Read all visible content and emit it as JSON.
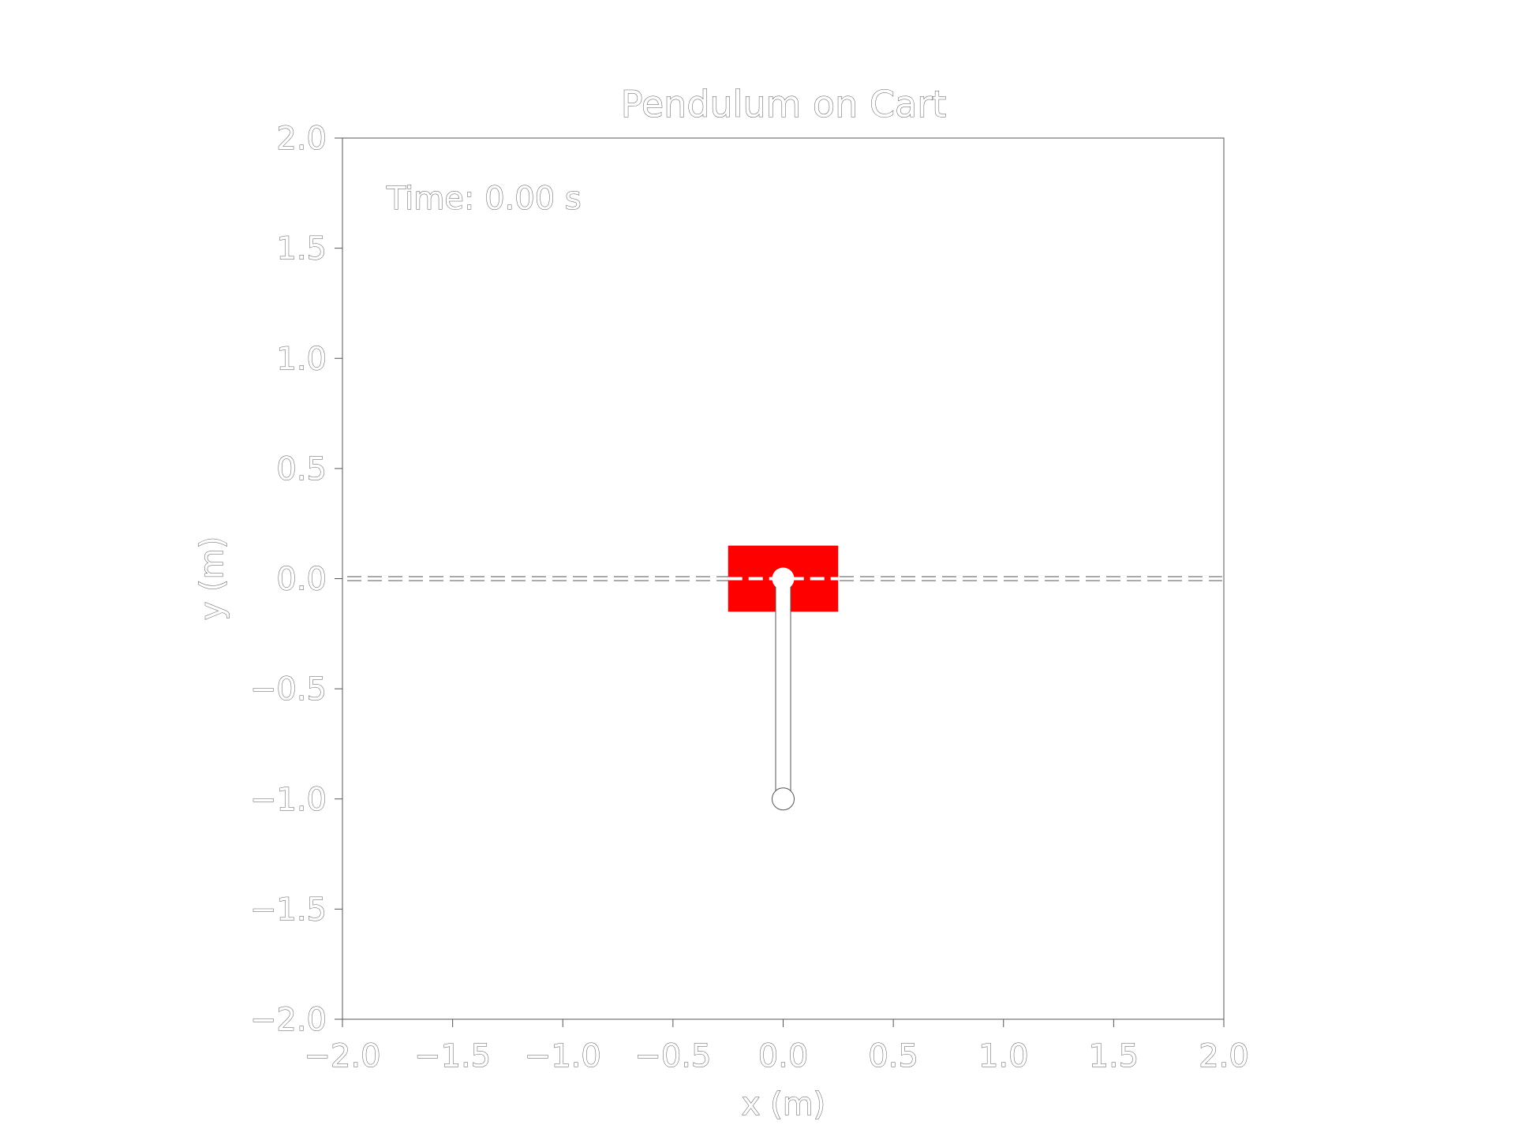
{
  "chart_data": {
    "type": "scatter",
    "title": "Pendulum on Cart",
    "xlabel": "x (m)",
    "ylabel": "y (m)",
    "xlim": [
      -2.0,
      2.0
    ],
    "ylim": [
      -2.0,
      2.0
    ],
    "xticks": [
      -2.0,
      -1.5,
      -1.0,
      -0.5,
      0.0,
      0.5,
      1.0,
      1.5,
      2.0
    ],
    "yticks": [
      -2.0,
      -1.5,
      -1.0,
      -0.5,
      0.0,
      0.5,
      1.0,
      1.5,
      2.0
    ],
    "xtick_labels": [
      "−2.0",
      "−1.5",
      "−1.0",
      "−0.5",
      "0.0",
      "0.5",
      "1.0",
      "1.5",
      "2.0"
    ],
    "ytick_labels": [
      "−2.0",
      "−1.5",
      "−1.0",
      "−0.5",
      "0.0",
      "0.5",
      "1.0",
      "1.5",
      "2.0"
    ],
    "grid": false,
    "annotation": "Time: 0.00 s",
    "track": {
      "y": 0.0,
      "style": "dashed"
    },
    "cart": {
      "x_center": 0.0,
      "y_center": 0.0,
      "width": 0.5,
      "height": 0.3,
      "color": "#ff0000"
    },
    "pivot": {
      "x": 0.0,
      "y": 0.0
    },
    "bob": {
      "x": 0.0,
      "y": -1.0
    }
  },
  "colors": {
    "cart": "#ff0000",
    "outline": "#555555",
    "fill": "#ffffff"
  }
}
